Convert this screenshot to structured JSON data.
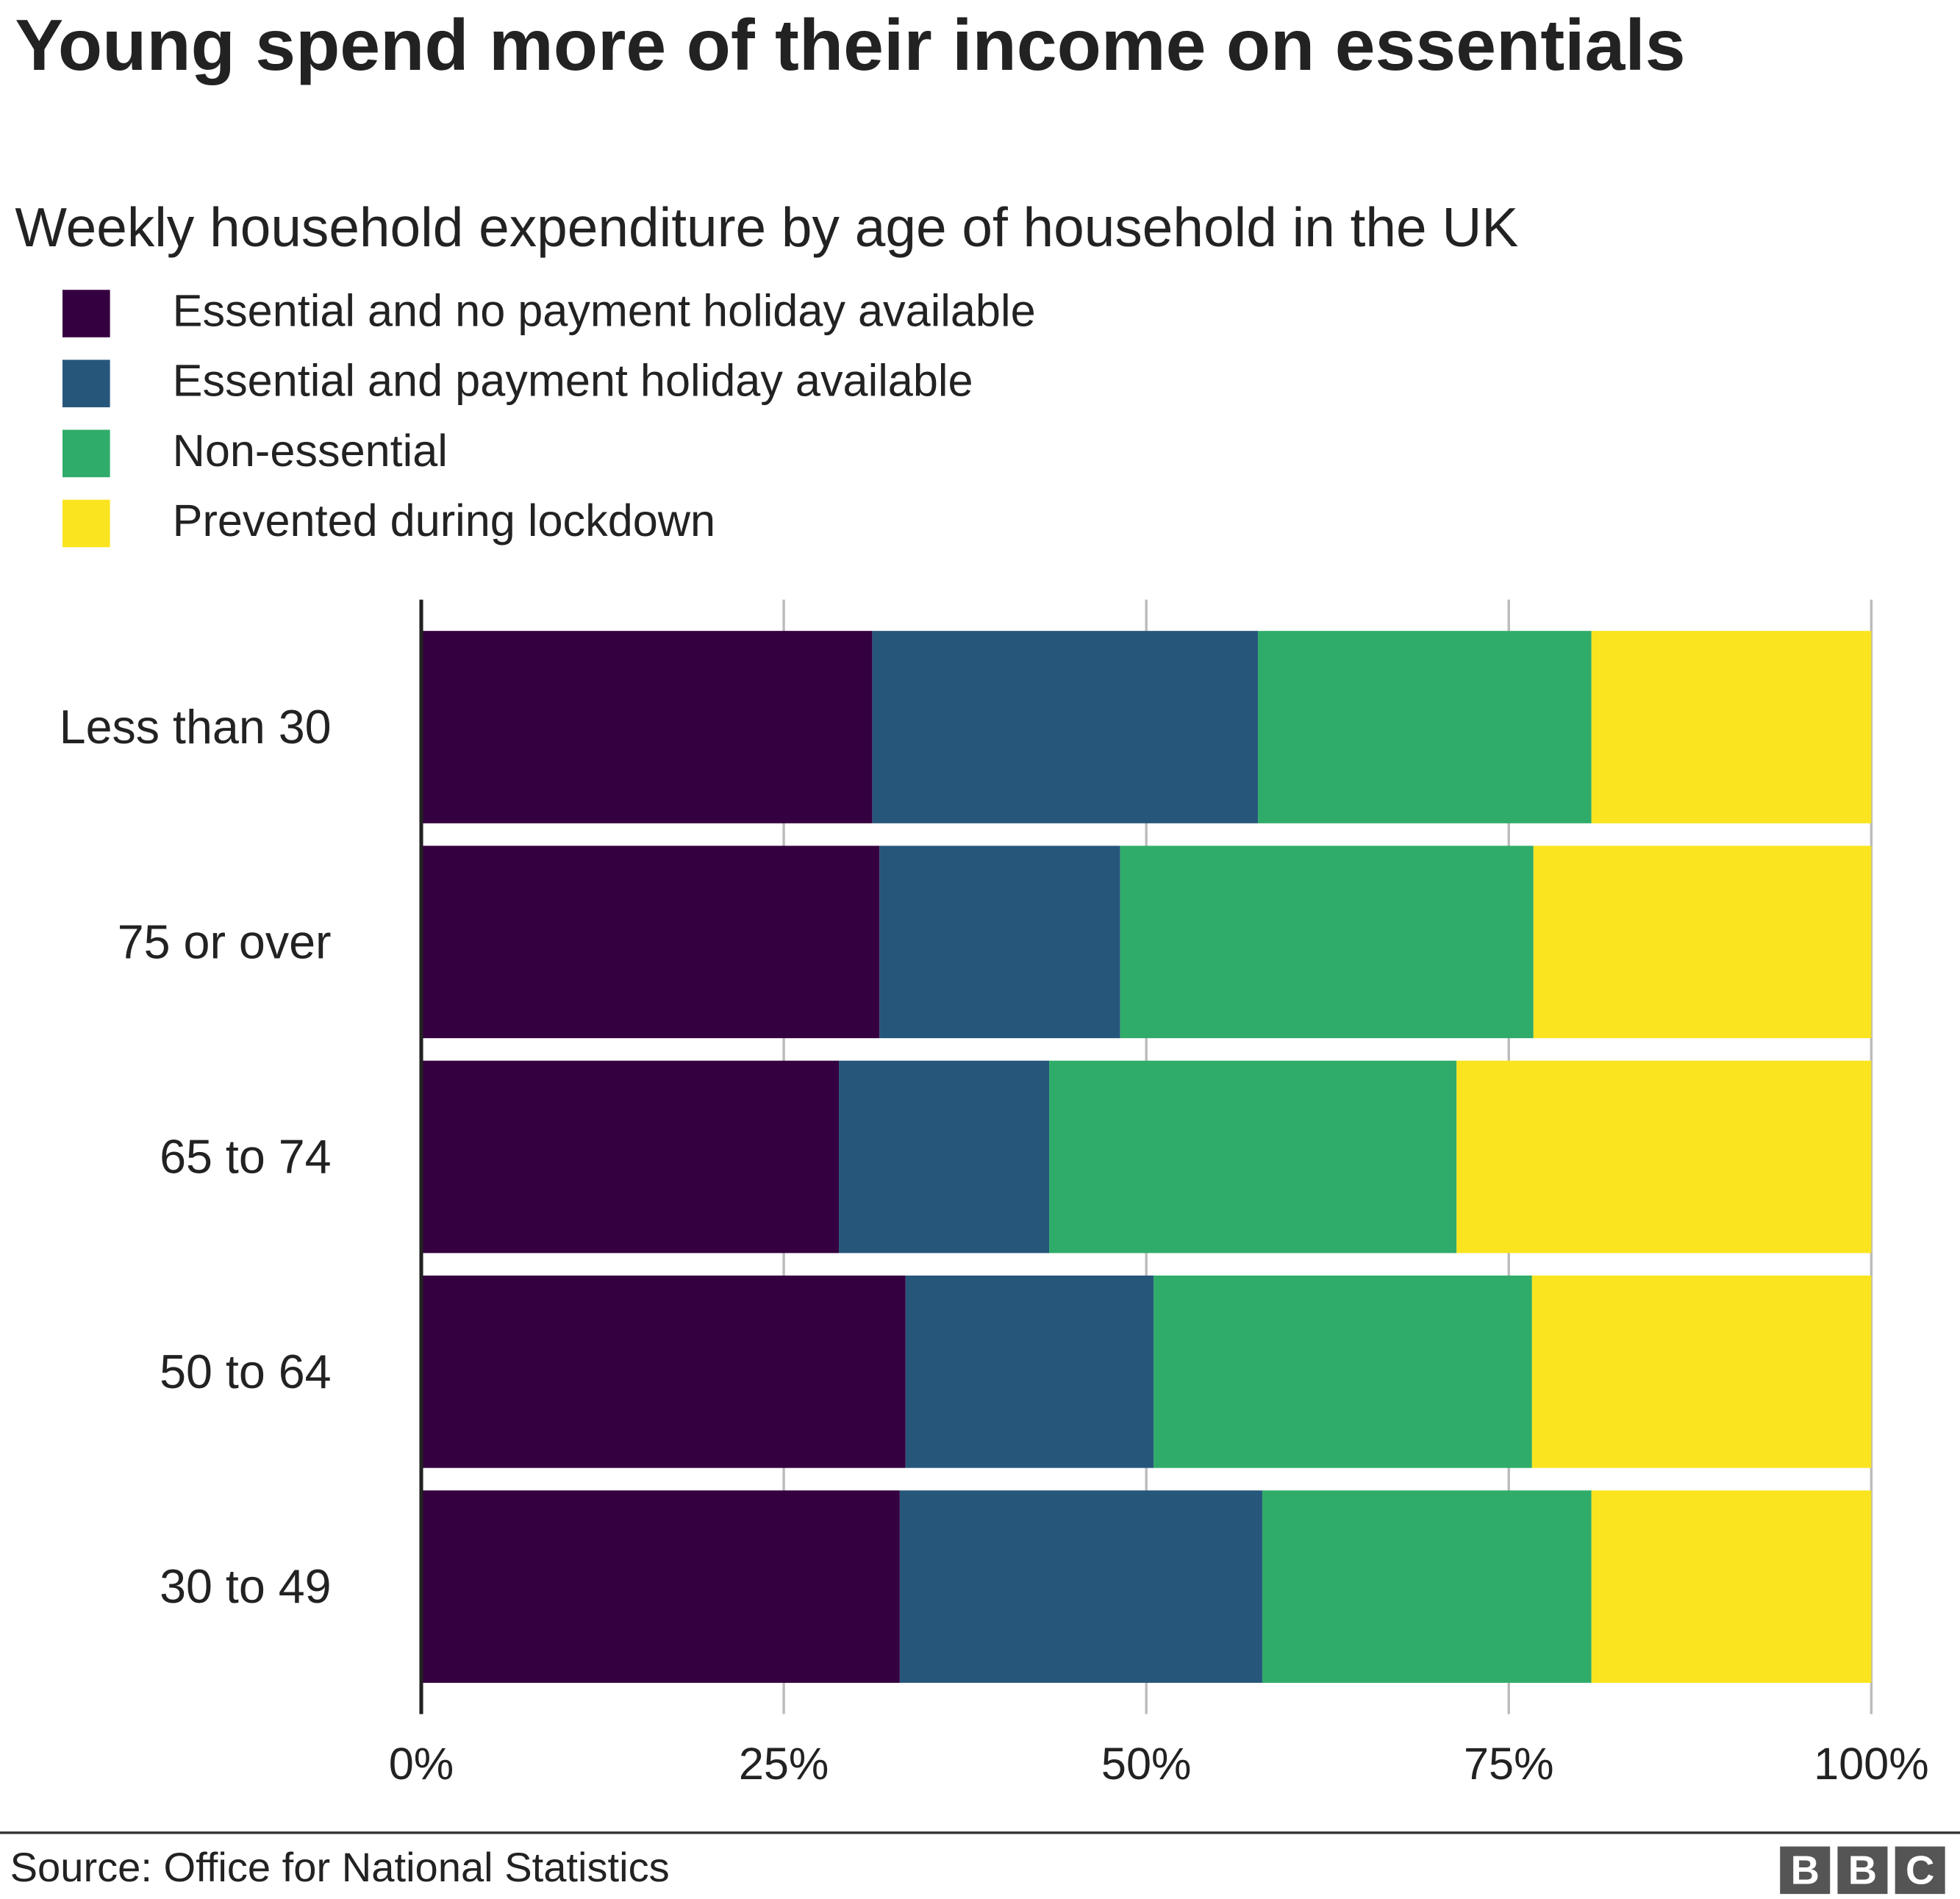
{
  "title": "Young spend more of their income on essentials",
  "subtitle": "Weekly household expenditure by age of household in the UK",
  "source": "Source: Office for National Statistics",
  "logo": "BBC",
  "chart_data": {
    "type": "bar",
    "orientation": "horizontal",
    "stacked": true,
    "title": "Young spend more of their income on essentials",
    "subtitle": "Weekly household expenditure by age of household in the UK",
    "categories": [
      "Less than 30",
      "75 or over",
      "65 to 74",
      "50 to 64",
      "30 to 49"
    ],
    "series": [
      {
        "name": "Essential and no payment holiday available",
        "color": "#35003f",
        "values": [
          31.1,
          31.6,
          28.8,
          33.4,
          33.0
        ]
      },
      {
        "name": "Essential and payment holiday available",
        "color": "#27567b",
        "values": [
          26.6,
          16.6,
          14.5,
          17.1,
          25.0
        ]
      },
      {
        "name": "Non-essential",
        "color": "#30ac6a",
        "values": [
          23.0,
          28.5,
          28.1,
          26.1,
          22.7
        ]
      },
      {
        "name": "Prevented during lockdown",
        "color": "#fae41f",
        "values": [
          19.3,
          23.3,
          28.6,
          23.4,
          19.3
        ]
      }
    ],
    "xlim": [
      0,
      100
    ],
    "xticks": [
      "0%",
      "25%",
      "50%",
      "75%",
      "100%"
    ],
    "xtick_values": [
      0,
      25,
      50,
      75,
      100
    ],
    "grid": true,
    "legend_position": "top-left"
  }
}
